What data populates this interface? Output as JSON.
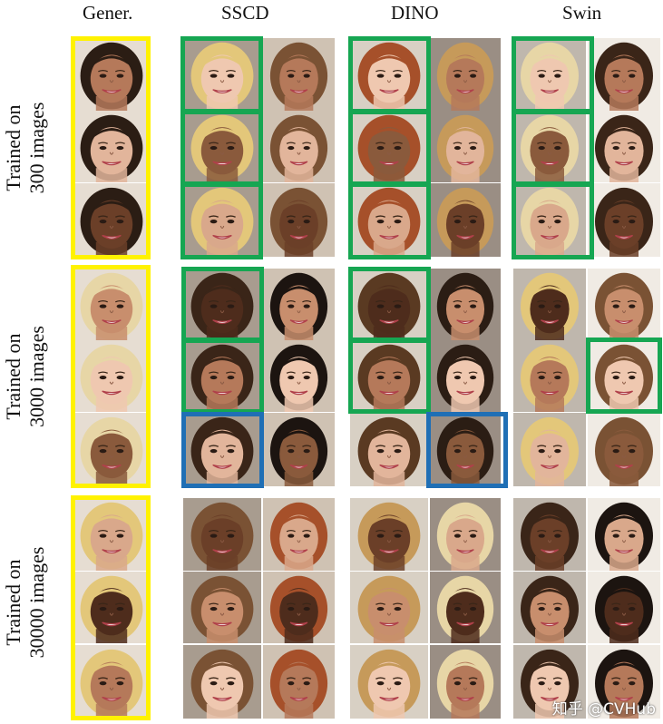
{
  "columns": {
    "gen": "Gener.",
    "sscd": "SSCD",
    "dino": "DINO",
    "swin": "Swin"
  },
  "rows": [
    {
      "line1": "Trained on",
      "line2": "300 images"
    },
    {
      "line1": "Trained on",
      "line2": "3000 images"
    },
    {
      "line1": "Trained on",
      "line2": "30000 images"
    }
  ],
  "watermark": "知乎 @CVHub",
  "box_colors": {
    "generated": "#fff200",
    "match": "#16a652",
    "other": "#1f6fb5"
  }
}
